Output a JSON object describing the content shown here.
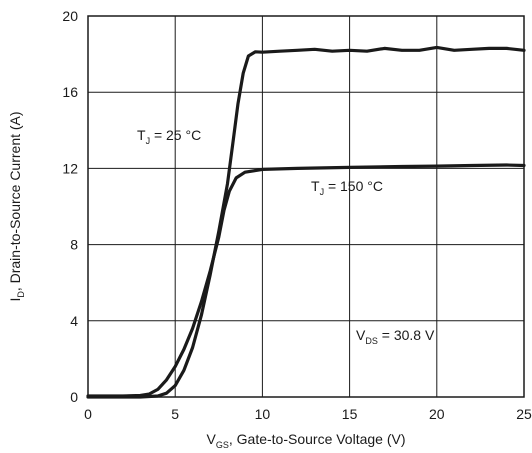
{
  "chart_data": {
    "type": "line",
    "xlabel": {
      "main": "V",
      "sub": "GS",
      "rest": ", Gate-to-Source Voltage (V)"
    },
    "ylabel": {
      "main": "I",
      "sub": "D",
      "rest": ", Drain-to-Source Current (A)"
    },
    "xlim": [
      0,
      25
    ],
    "ylim": [
      0,
      20
    ],
    "xticks": [
      0,
      5,
      10,
      15,
      20,
      25
    ],
    "yticks": [
      0,
      4,
      8,
      12,
      16,
      20
    ],
    "x_tick_labels": [
      "0",
      "5",
      "10",
      "15",
      "20",
      "25"
    ],
    "y_tick_labels": [
      "0",
      "4",
      "8",
      "12",
      "16",
      "20"
    ],
    "grid": true,
    "legend": "none",
    "series_color": "#1a1a1a",
    "series": [
      {
        "values": [
          [
            0,
            0.05
          ],
          [
            2,
            0.05
          ],
          [
            3,
            0.08
          ],
          [
            3.5,
            0.15
          ],
          [
            4,
            0.4
          ],
          [
            4.5,
            0.9
          ],
          [
            5,
            1.6
          ],
          [
            5.5,
            2.5
          ],
          [
            6,
            3.6
          ],
          [
            6.5,
            5.0
          ],
          [
            7,
            6.6
          ],
          [
            7.5,
            8.4
          ],
          [
            7.8,
            9.8
          ],
          [
            8.1,
            10.8
          ],
          [
            8.5,
            11.5
          ],
          [
            9,
            11.8
          ],
          [
            10,
            11.95
          ],
          [
            12,
            12.0
          ],
          [
            15,
            12.05
          ],
          [
            18,
            12.1
          ],
          [
            20,
            12.12
          ],
          [
            22,
            12.15
          ],
          [
            24,
            12.18
          ],
          [
            25,
            12.15
          ]
        ]
      },
      {
        "values": [
          [
            0,
            0.0
          ],
          [
            3,
            0.0
          ],
          [
            4,
            0.05
          ],
          [
            4.5,
            0.2
          ],
          [
            5,
            0.6
          ],
          [
            5.5,
            1.4
          ],
          [
            6,
            2.6
          ],
          [
            6.5,
            4.3
          ],
          [
            7,
            6.4
          ],
          [
            7.5,
            8.7
          ],
          [
            8,
            11.2
          ],
          [
            8.3,
            13.3
          ],
          [
            8.6,
            15.4
          ],
          [
            8.9,
            17.0
          ],
          [
            9.2,
            17.9
          ],
          [
            9.6,
            18.12
          ],
          [
            10,
            18.1
          ],
          [
            11,
            18.15
          ],
          [
            12,
            18.2
          ],
          [
            13,
            18.25
          ],
          [
            14,
            18.15
          ],
          [
            15,
            18.2
          ],
          [
            16,
            18.15
          ],
          [
            17,
            18.3
          ],
          [
            18,
            18.2
          ],
          [
            19,
            18.2
          ],
          [
            20,
            18.35
          ],
          [
            21,
            18.2
          ],
          [
            22,
            18.25
          ],
          [
            23,
            18.3
          ],
          [
            24,
            18.3
          ],
          [
            25,
            18.2
          ]
        ]
      }
    ],
    "annotations": [
      {
        "main": "T",
        "sub": "J",
        "rest": " = 25 °C"
      },
      {
        "main": "T",
        "sub": "J",
        "rest": " = 150 °C"
      },
      {
        "main": "V",
        "sub": "DS",
        "rest": " = 30.8 V"
      }
    ]
  }
}
